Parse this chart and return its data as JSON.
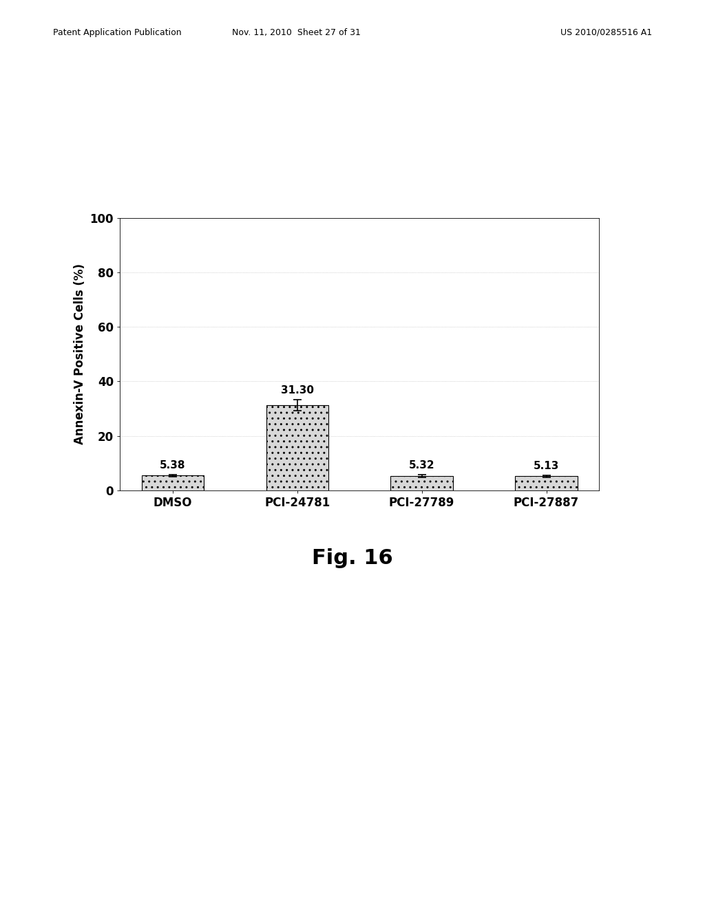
{
  "categories": [
    "DMSO",
    "PCI-24781",
    "PCI-27789",
    "PCI-27887"
  ],
  "values": [
    5.38,
    31.3,
    5.32,
    5.13
  ],
  "errors": [
    0.5,
    2.0,
    0.5,
    0.5
  ],
  "bar_color": "#d8d8d8",
  "bar_edgecolor": "#000000",
  "ylabel": "Annexin-V Positive Cells (%)",
  "ylim": [
    0,
    100
  ],
  "yticks": [
    0,
    20,
    40,
    60,
    80,
    100
  ],
  "value_labels": [
    "5.38",
    "31.30",
    "5.32",
    "5.13"
  ],
  "fig_caption": "Fig. 16",
  "header_left": "Patent Application Publication",
  "header_mid": "Nov. 11, 2010  Sheet 27 of 31",
  "header_right": "US 2010/0285516 A1",
  "background_color": "#ffffff",
  "bar_width": 0.5,
  "axis_fontsize": 12,
  "tick_fontsize": 12,
  "label_fontsize": 11,
  "caption_fontsize": 22,
  "header_fontsize": 9
}
